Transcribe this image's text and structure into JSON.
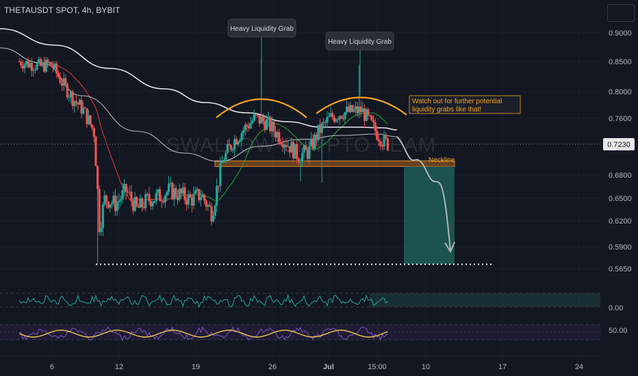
{
  "header": {
    "symbol": "THETAUSDT SPOT, 4h, BYBIT",
    "watermark": "SWALLOW CRYPTO TEAM"
  },
  "colors": {
    "background": "#131722",
    "up": "#26a69a",
    "down": "#ef5350",
    "pattern_arc": "#f5a623",
    "neckline_zone": "#b5651d",
    "target_zone": "#1f5d57",
    "ema_red": "#e53935",
    "ema_green": "#26a82f",
    "ma_white": "#e9e9ee",
    "ma_grey": "#b9b9c0",
    "rsi_yellow": "#f2c94c",
    "rsi_purple": "#7e57c2",
    "osc_teal": "#26a69a"
  },
  "chart_data": {
    "type": "candlestick",
    "symbol": "THETAUSDT SPOT",
    "timeframe": "4h",
    "exchange": "BYBIT",
    "y_axis": {
      "ticks": [
        "0.9000",
        "0.8500",
        "0.8000",
        "0.7600",
        "0.6800",
        "0.6500",
        "0.6200",
        "0.5900",
        "0.5650"
      ],
      "last_price": "0.7230",
      "ylim": [
        0.556,
        0.92
      ]
    },
    "x_axis": {
      "ticks": [
        "6",
        "12",
        "19",
        "26",
        "Jul",
        "15:00",
        "10",
        "17",
        "24"
      ]
    },
    "price_path": [
      [
        "Jun 3",
        0.85
      ],
      [
        "Jun 5",
        0.842
      ],
      [
        "Jun 6",
        0.846
      ],
      [
        "Jun 7",
        0.815
      ],
      [
        "Jun 8",
        0.79
      ],
      [
        "Jun 9",
        0.772
      ],
      [
        "Jun 10",
        0.74
      ],
      [
        "Jun 10 12h",
        0.612
      ],
      [
        "Jun 11",
        0.65
      ],
      [
        "Jun 12",
        0.642
      ],
      [
        "Jun 13",
        0.66
      ],
      [
        "Jun 14",
        0.635
      ],
      [
        "Jun 15",
        0.648
      ],
      [
        "Jun 16",
        0.652
      ],
      [
        "Jun 17",
        0.66
      ],
      [
        "Jun 18",
        0.655
      ],
      [
        "Jun 19",
        0.648
      ],
      [
        "Jun 20",
        0.655
      ],
      [
        "Jun 21",
        0.63
      ],
      [
        "Jun 22",
        0.7
      ],
      [
        "Jun 23",
        0.728
      ],
      [
        "Jun 24",
        0.745
      ],
      [
        "Jun 25",
        0.76
      ],
      [
        "Jun 26",
        0.755
      ],
      [
        "Jun 27",
        0.74
      ],
      [
        "Jun 28",
        0.725
      ],
      [
        "Jun 29",
        0.708
      ],
      [
        "Jun 30",
        0.712
      ],
      [
        "Jul 1",
        0.742
      ],
      [
        "Jul 2",
        0.76
      ],
      [
        "Jul 3",
        0.768
      ],
      [
        "Jul 4",
        0.77
      ],
      [
        "Jul 5",
        0.772
      ],
      [
        "Jul 6",
        0.748
      ],
      [
        "Jul 7",
        0.728
      ],
      [
        "Jul 7 12h",
        0.723
      ]
    ],
    "annotations": {
      "liquidity_grab_1": {
        "text": "Heavy Liquidity Grab",
        "price": 0.855
      },
      "liquidity_grab_2": {
        "text": "Heavy Liquidity Grab",
        "price": 0.845
      },
      "watch_note": {
        "line1": "Watch out for further potential",
        "line2": "liquidity grabs like that!"
      },
      "neckline": {
        "text": "Neckline",
        "price_top": 0.7,
        "price_bottom": 0.692
      },
      "target_level": 0.57,
      "target_zone": {
        "top": 0.692,
        "bottom": 0.57
      }
    },
    "indicators": {
      "oscillator": {
        "level_label": "0.00"
      },
      "rsi": {
        "level_label": "50.00"
      }
    }
  }
}
